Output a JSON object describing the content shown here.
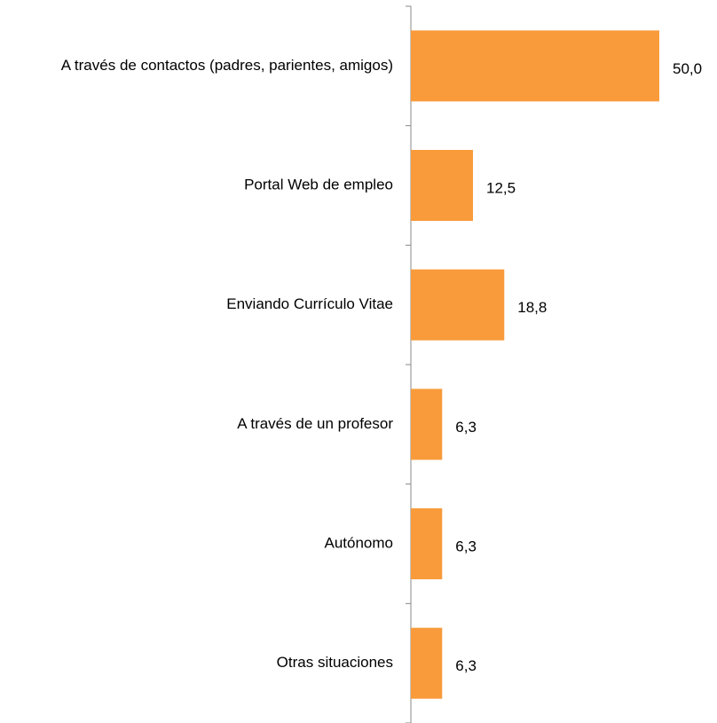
{
  "chart_data": {
    "type": "barh",
    "categories": [
      "A través de contactos (padres, parientes, amigos)",
      "Portal Web de empleo",
      "Enviando Currículo Vitae",
      "A través de un profesor",
      "Autónomo",
      "Otras situaciones"
    ],
    "values": [
      50.0,
      12.5,
      18.8,
      6.3,
      6.3,
      6.3
    ],
    "value_labels": [
      "50,0",
      "12,5",
      "18,8",
      "6,3",
      "6,3",
      "6,3"
    ],
    "color": "#f99b3b"
  }
}
